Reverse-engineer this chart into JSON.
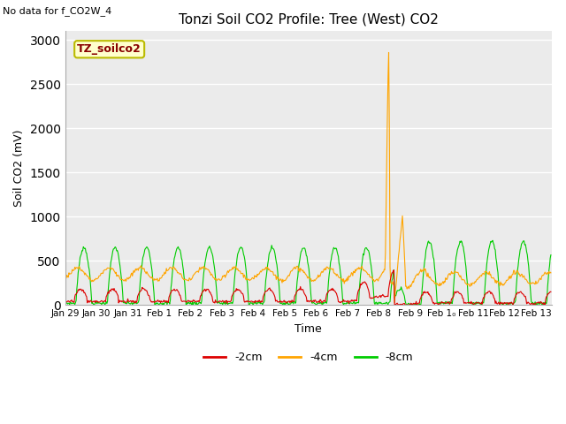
{
  "title": "Tonzi Soil CO2 Profile: Tree (West) CO2",
  "no_data_text": "No data for f_CO2W_4",
  "legend_box_label": "TZ_soilco2",
  "xlabel": "Time",
  "ylabel": "Soil CO2 (mV)",
  "ylim": [
    0,
    3100
  ],
  "yticks": [
    0,
    500,
    1000,
    1500,
    2000,
    2500,
    3000
  ],
  "xlim_days": [
    0,
    15.5
  ],
  "xtick_positions": [
    0,
    1,
    2,
    3,
    4,
    5,
    6,
    7,
    8,
    9,
    10,
    11,
    12,
    13,
    14,
    15
  ],
  "xtick_labels": [
    "Jan 29",
    "Jan 30",
    "Jan 31",
    "Feb 1",
    "Feb 2",
    "Feb 3",
    "Feb 4",
    "Feb 5",
    "Feb 6",
    "Feb 7",
    "Feb 8",
    "Feb 9",
    "Feb 1₀",
    "Feb 11",
    "Feb 12",
    "Feb 13"
  ],
  "color_red": "#dd0000",
  "color_orange": "#ffa500",
  "color_green": "#00cc00",
  "legend_labels": [
    "-2cm",
    "-4cm",
    "-8cm"
  ],
  "bg_color": "#ebebeb",
  "grid_color": "#ffffff",
  "fig_bg_color": "#ffffff",
  "legend_box_facecolor": "#ffffcc",
  "legend_box_edgecolor": "#bbbb00"
}
